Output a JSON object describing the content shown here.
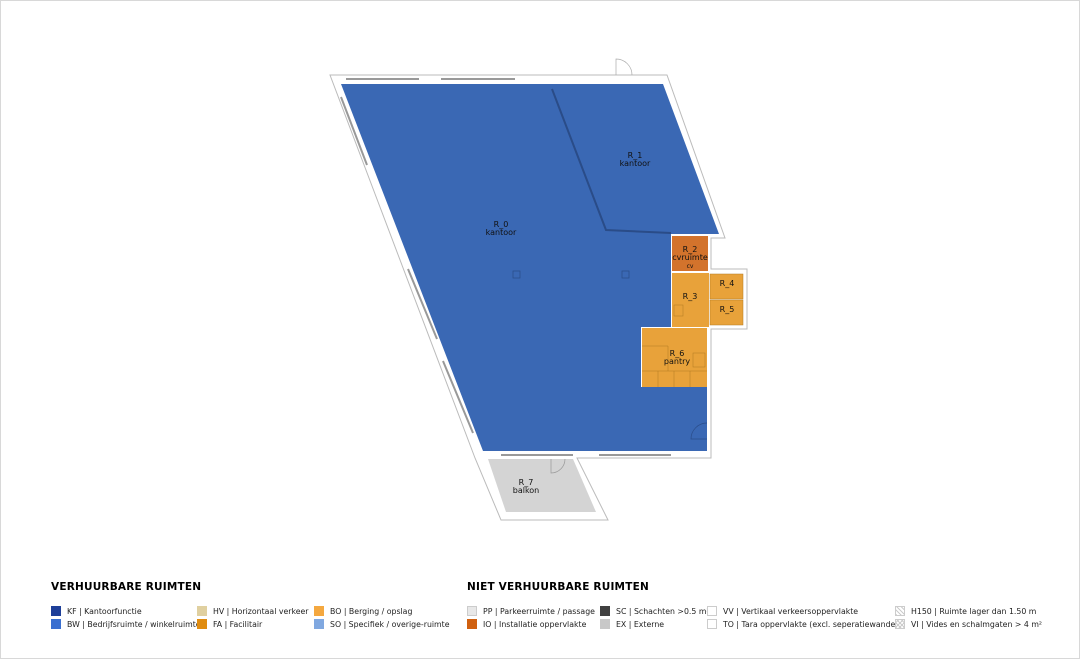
{
  "rooms": [
    {
      "id": "R_0",
      "name": "kantoor",
      "code": "BW",
      "color": "#3a68b4"
    },
    {
      "id": "R_1",
      "name": "kantoor",
      "code": "BW",
      "color": "#3a68b4"
    },
    {
      "id": "R_2",
      "name": "cvruimte",
      "sub": "cv",
      "code": "IO",
      "color": "#d3732c"
    },
    {
      "id": "R_3",
      "name": "",
      "code": "BO",
      "color": "#e8a23a"
    },
    {
      "id": "R_4",
      "name": "",
      "code": "BO",
      "color": "#e8a23a"
    },
    {
      "id": "R_5",
      "name": "",
      "code": "BO",
      "color": "#e8a23a"
    },
    {
      "id": "R_6",
      "name": "pantry",
      "code": "BO",
      "color": "#e8a23a"
    },
    {
      "id": "R_7",
      "name": "balkon",
      "code": "EX",
      "color": "#d4d4d4"
    }
  ],
  "legend": {
    "rentable_title": "VERHUURBARE RUIMTEN",
    "rentable": [
      {
        "label": "KF | Kantoorfunctie",
        "color": "#1e3f99"
      },
      {
        "label": "BW | Bedrijfsruimte / winkelruimte",
        "color": "#3a6fd0"
      },
      {
        "label": "HV | Horizontaal verkeer",
        "color": "#e0d0a0"
      },
      {
        "label": "FA | Facilitair",
        "color": "#e08c10"
      },
      {
        "label": "BO | Berging / opslag",
        "color": "#f4a840"
      },
      {
        "label": "SO | Specifiek / overige-ruimte",
        "color": "#80a8e0"
      }
    ],
    "nonrentable_title": "NIET VERHUURBARE RUIMTEN",
    "nonrentable": [
      {
        "label": "PP | Parkeerruimte / passage",
        "color": "#e8e8e8"
      },
      {
        "label": "IO | Installatie oppervlakte",
        "color": "#d06010"
      },
      {
        "label": "SC | Schachten >0.5 m²",
        "color": "#404040"
      },
      {
        "label": "EX | Externe",
        "color": "#c8c8c8"
      },
      {
        "label": "VV | Vertikaal verkeersoppervlakte",
        "color": "#ffffff"
      },
      {
        "label": "TO | Tara oppervlakte (excl. seperatiewanden)",
        "color": "#ffffff"
      },
      {
        "label": "H150 | Ruimte lager dan 1.50 m",
        "color": "hatch"
      },
      {
        "label": "VI | Vides en schalmgaten  > 4 m²",
        "color": "crosshatch"
      }
    ]
  }
}
